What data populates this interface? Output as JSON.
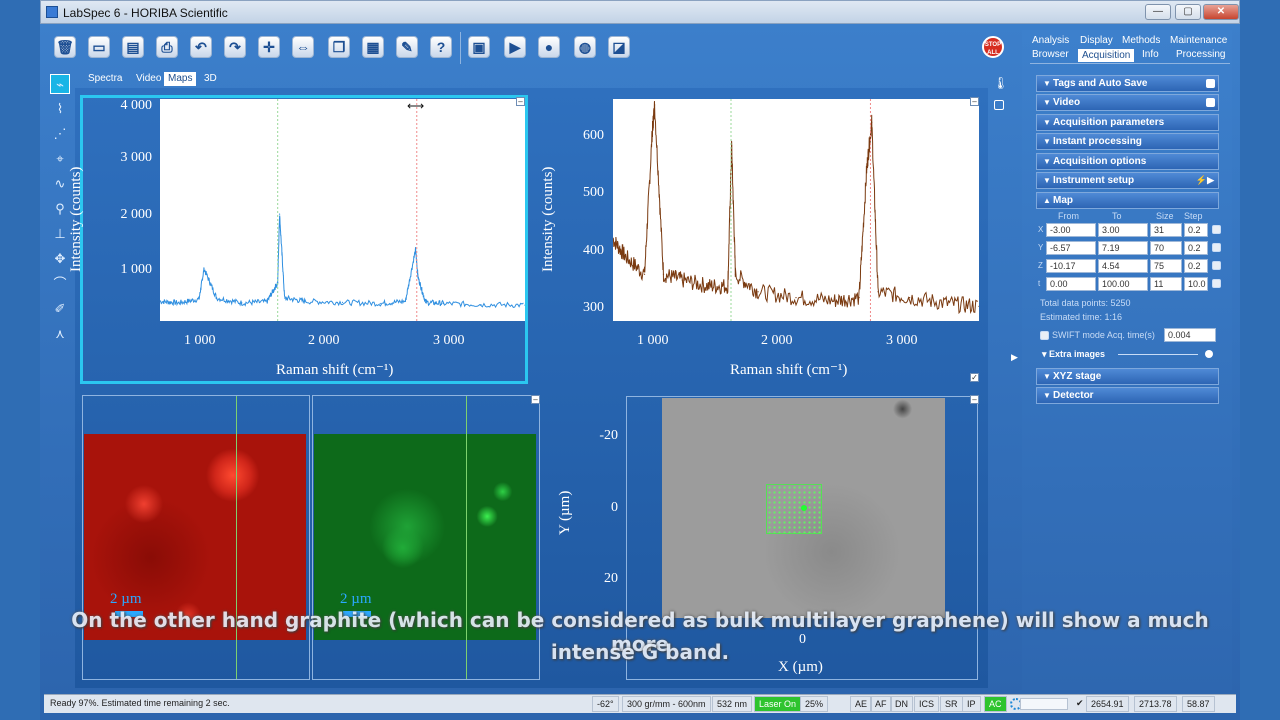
{
  "window": {
    "title": "LabSpec 6 - HORIBA Scientific",
    "min": "—",
    "max": "▢",
    "close": "✕"
  },
  "toolbar": {
    "icons": [
      "trash-icon",
      "open-icon",
      "save-icon",
      "print-icon",
      "undo-icon",
      "redo-icon",
      "crosshair-icon",
      "fit-icon",
      "copy-icon",
      "paste-icon",
      "tools-icon",
      "help-icon",
      "cube-icon",
      "play-icon",
      "sphere-icon",
      "grid-sphere-icon",
      "camera-icon"
    ],
    "stop_label": "STOP ALL"
  },
  "view_tabs": [
    "Spectra",
    "Video",
    "Maps",
    "3D"
  ],
  "active_view_tab": "Maps",
  "plot1": {
    "yticks": [
      "4 000",
      "3 000",
      "2 000",
      "1 000"
    ],
    "xticks": [
      "1 000",
      "2 000",
      "3 000"
    ],
    "ylabel": "Intensity (counts)",
    "xlabel": "Raman shift (cm⁻¹)"
  },
  "plot2": {
    "yticks": [
      "600",
      "500",
      "400",
      "300"
    ],
    "xticks": [
      "1 000",
      "2 000",
      "3 000"
    ],
    "ylabel": "Intensity (counts)",
    "xlabel": "Raman shift (cm⁻¹)"
  },
  "map_red": {
    "scalebar": "2 µm"
  },
  "map_green": {
    "scalebar": "2 µm"
  },
  "video_map": {
    "yticks": [
      "-20",
      "0",
      "20"
    ],
    "ylabel": "Y (µm)",
    "xtick": "0",
    "xlabel": "X (µm)"
  },
  "right_panel": {
    "tabs_row1": [
      "Analysis",
      "Display",
      "Methods",
      "Maintenance"
    ],
    "tabs_row2": [
      "Browser",
      "Acquisition",
      "Info",
      "Processing"
    ],
    "active_tab": "Acquisition",
    "sections_top": [
      "Tags and Auto Save",
      "Video",
      "Acquisition parameters",
      "Instant processing",
      "Acquisition options",
      "Instrument setup",
      "Map"
    ],
    "map": {
      "headers": [
        "From",
        "To",
        "Size",
        "Step"
      ],
      "rows": [
        {
          "axis": "X",
          "from": "-3.00",
          "to": "3.00",
          "size": "31",
          "step": "0.2"
        },
        {
          "axis": "Y",
          "from": "-6.57",
          "to": "7.19",
          "size": "70",
          "step": "0.2"
        },
        {
          "axis": "Z",
          "from": "-10.17",
          "to": "4.54",
          "size": "75",
          "step": "0.2"
        },
        {
          "axis": "t",
          "from": "0.00",
          "to": "100.00",
          "size": "11",
          "step": "10.0"
        }
      ],
      "total_points": "Total data points:   5250",
      "estimated_time": "Estimated time:   1:16",
      "swift_label": "SWIFT mode  Acq. time(s)",
      "swift_value": "0.004",
      "extra_images": "Extra images"
    },
    "sections_bottom": [
      "XYZ stage",
      "Detector"
    ]
  },
  "status": {
    "message": "Ready 97%. Estimated time remaining 2 sec.",
    "angle": "-62°",
    "grating": "300 gr/mm - 600nm",
    "laser_wl": "532 nm",
    "laser_state": "Laser On",
    "filter": "25%",
    "flags": [
      "AE",
      "AF",
      "DN",
      "ICS",
      "SR",
      "IP",
      "AC"
    ],
    "coords": [
      "2654.91",
      "2713.78",
      "58.87"
    ]
  },
  "caption": {
    "line1": "On the other hand graphite (which can be considered as bulk multilayer graphene) will show a much more",
    "line2": "intense G band."
  },
  "colors": {
    "accent": "#2f6db4",
    "selected_plot": "#2bc7f0",
    "spectrum1": "#2f8fe0",
    "spectrum2": "#7a3a10",
    "map_red": "#b3140c",
    "map_green": "#107a1f"
  },
  "chart_data": [
    {
      "type": "line",
      "xlabel": "Raman shift (cm⁻¹)",
      "ylabel": "Intensity (counts)",
      "xlim": [
        650,
        3550
      ],
      "ylim": [
        0,
        4050
      ],
      "series": [
        {
          "x": [
            650,
            800,
            960,
            1000,
            1100,
            1300,
            1500,
            1585,
            1600,
            1640,
            1800,
            2100,
            2400,
            2600,
            2680,
            2700,
            2760,
            2900,
            3200,
            3550
          ],
          "y": [
            360,
            330,
            400,
            950,
            420,
            330,
            350,
            700,
            1950,
            420,
            360,
            340,
            320,
            360,
            1300,
            800,
            340,
            320,
            300,
            290
          ]
        }
      ]
    },
    {
      "type": "line",
      "xlabel": "Raman shift (cm⁻¹)",
      "ylabel": "Intensity (counts)",
      "xlim": [
        650,
        3550
      ],
      "ylim": [
        280,
        660
      ],
      "series": [
        {
          "x": [
            650,
            750,
            900,
            960,
            980,
            1050,
            1200,
            1400,
            1560,
            1590,
            1620,
            1800,
            2100,
            2400,
            2600,
            2660,
            2700,
            2750,
            3000,
            3300,
            3550
          ],
          "y": [
            420,
            390,
            360,
            600,
            650,
            360,
            350,
            340,
            340,
            580,
            360,
            330,
            320,
            315,
            320,
            540,
            620,
            330,
            320,
            310,
            305
          ]
        }
      ]
    }
  ]
}
